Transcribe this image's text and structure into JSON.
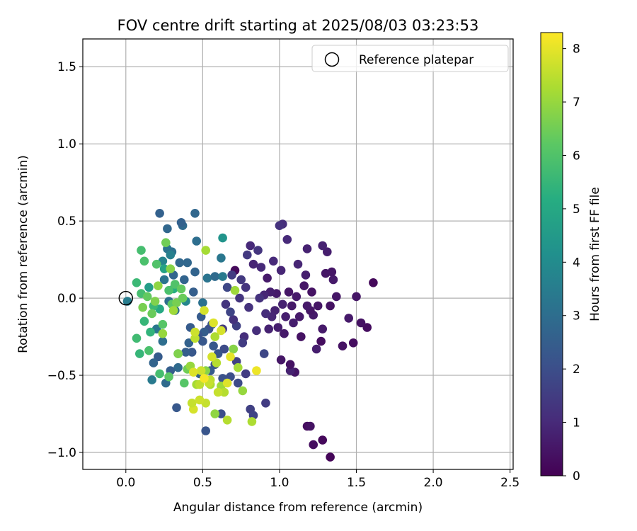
{
  "chart_data": {
    "type": "scatter",
    "title": "FOV centre drift starting at 2025/08/03 03:23:53",
    "xlabel": "Angular distance from reference (arcmin)",
    "ylabel": "Rotation from reference (arcmin)",
    "xlim": [
      -0.28,
      2.52
    ],
    "ylim": [
      -1.11,
      1.68
    ],
    "xticks": [
      0.0,
      0.5,
      1.0,
      1.5,
      2.0,
      2.5
    ],
    "xtick_labels": [
      "0.0",
      "0.5",
      "1.0",
      "1.5",
      "2.0",
      "2.5"
    ],
    "yticks": [
      -1.0,
      -0.5,
      0.0,
      0.5,
      1.0,
      1.5
    ],
    "ytick_labels": [
      "−1.0",
      "−0.5",
      "0.0",
      "0.5",
      "1.0",
      "1.5"
    ],
    "grid": true,
    "legend": {
      "placement": "top-right",
      "entries": [
        "Reference platepar"
      ]
    },
    "reference_point": {
      "x": 0.0,
      "y": 0.0,
      "label": "Reference platepar"
    },
    "colorbar": {
      "label": "Hours from first FF file",
      "colormap": "viridis",
      "range": [
        0,
        8.3
      ],
      "ticks": [
        0,
        1,
        2,
        3,
        4,
        5,
        6,
        7,
        8
      ],
      "tick_labels": [
        "0",
        "1",
        "2",
        "3",
        "4",
        "5",
        "6",
        "7",
        "8"
      ]
    },
    "points": [
      {
        "x": 1.33,
        "y": -1.03,
        "c": 0.1
      },
      {
        "x": 1.28,
        "y": -0.92,
        "c": 0.2
      },
      {
        "x": 1.22,
        "y": -0.95,
        "c": 0.3
      },
      {
        "x": 1.18,
        "y": -0.83,
        "c": 0.3
      },
      {
        "x": 1.2,
        "y": -0.83,
        "c": 0.4
      },
      {
        "x": 1.61,
        "y": 0.1,
        "c": 0.2
      },
      {
        "x": 1.57,
        "y": -0.19,
        "c": 0.3
      },
      {
        "x": 1.53,
        "y": -0.16,
        "c": 0.4
      },
      {
        "x": 1.5,
        "y": 0.01,
        "c": 0.5
      },
      {
        "x": 1.48,
        "y": -0.29,
        "c": 0.3
      },
      {
        "x": 1.45,
        "y": -0.13,
        "c": 0.6
      },
      {
        "x": 1.41,
        "y": -0.31,
        "c": 0.4
      },
      {
        "x": 1.37,
        "y": 0.01,
        "c": 0.5
      },
      {
        "x": 1.35,
        "y": 0.12,
        "c": 0.6
      },
      {
        "x": 1.34,
        "y": 0.17,
        "c": 0.5
      },
      {
        "x": 1.33,
        "y": -0.05,
        "c": 0.4
      },
      {
        "x": 1.31,
        "y": 0.3,
        "c": 0.7
      },
      {
        "x": 1.3,
        "y": 0.16,
        "c": 0.5
      },
      {
        "x": 1.28,
        "y": 0.34,
        "c": 0.8
      },
      {
        "x": 1.28,
        "y": -0.2,
        "c": 0.6
      },
      {
        "x": 1.27,
        "y": -0.28,
        "c": 0.3
      },
      {
        "x": 1.25,
        "y": -0.05,
        "c": 0.5
      },
      {
        "x": 1.24,
        "y": -0.33,
        "c": 0.7
      },
      {
        "x": 1.22,
        "y": -0.11,
        "c": 0.6
      },
      {
        "x": 1.21,
        "y": 0.04,
        "c": 0.4
      },
      {
        "x": 1.2,
        "y": -0.08,
        "c": 0.5
      },
      {
        "x": 1.18,
        "y": -0.05,
        "c": 0.6
      },
      {
        "x": 1.18,
        "y": 0.32,
        "c": 0.8
      },
      {
        "x": 1.17,
        "y": 0.15,
        "c": 0.7
      },
      {
        "x": 1.16,
        "y": 0.08,
        "c": 0.5
      },
      {
        "x": 1.14,
        "y": -0.25,
        "c": 0.4
      },
      {
        "x": 1.13,
        "y": -0.12,
        "c": 0.6
      },
      {
        "x": 1.12,
        "y": 0.22,
        "c": 0.9
      },
      {
        "x": 1.11,
        "y": 0.01,
        "c": 0.6
      },
      {
        "x": 1.1,
        "y": -0.48,
        "c": 0.5
      },
      {
        "x": 1.09,
        "y": -0.16,
        "c": 0.7
      },
      {
        "x": 1.08,
        "y": -0.05,
        "c": 0.6
      },
      {
        "x": 1.07,
        "y": -0.47,
        "c": 0.8
      },
      {
        "x": 1.07,
        "y": -0.43,
        "c": 0.4
      },
      {
        "x": 1.06,
        "y": 0.04,
        "c": 0.5
      },
      {
        "x": 1.05,
        "y": 0.38,
        "c": 1.0
      },
      {
        "x": 1.04,
        "y": -0.12,
        "c": 0.7
      },
      {
        "x": 1.03,
        "y": -0.23,
        "c": 0.6
      },
      {
        "x": 1.02,
        "y": 0.48,
        "c": 1.1
      },
      {
        "x": 1.02,
        "y": -0.04,
        "c": 0.8
      },
      {
        "x": 1.01,
        "y": 0.18,
        "c": 0.9
      },
      {
        "x": 1.01,
        "y": -0.4,
        "c": 0.5
      },
      {
        "x": 1.0,
        "y": 0.47,
        "c": 1.2
      },
      {
        "x": 0.99,
        "y": -0.19,
        "c": 0.7
      },
      {
        "x": 0.98,
        "y": 0.03,
        "c": 0.6
      },
      {
        "x": 0.97,
        "y": -0.08,
        "c": 0.8
      },
      {
        "x": 0.96,
        "y": 0.24,
        "c": 1.0
      },
      {
        "x": 0.95,
        "y": -0.12,
        "c": 0.9
      },
      {
        "x": 0.94,
        "y": 0.04,
        "c": 0.7
      },
      {
        "x": 0.93,
        "y": -0.2,
        "c": 0.8
      },
      {
        "x": 0.92,
        "y": 0.13,
        "c": 0.6
      },
      {
        "x": 0.91,
        "y": -0.1,
        "c": 1.1
      },
      {
        "x": 0.9,
        "y": 0.02,
        "c": 0.9
      },
      {
        "x": 0.88,
        "y": 0.2,
        "c": 1.0
      },
      {
        "x": 0.87,
        "y": 0.0,
        "c": 1.2
      },
      {
        "x": 0.86,
        "y": 0.31,
        "c": 1.3
      },
      {
        "x": 0.85,
        "y": -0.21,
        "c": 1.1
      },
      {
        "x": 0.83,
        "y": 0.22,
        "c": 0.9
      },
      {
        "x": 0.81,
        "y": 0.34,
        "c": 1.0
      },
      {
        "x": 0.8,
        "y": -0.06,
        "c": 1.2
      },
      {
        "x": 0.79,
        "y": 0.28,
        "c": 1.4
      },
      {
        "x": 0.78,
        "y": 0.07,
        "c": 1.3
      },
      {
        "x": 0.77,
        "y": -0.25,
        "c": 1.1
      },
      {
        "x": 0.76,
        "y": -0.29,
        "c": 1.5
      },
      {
        "x": 0.75,
        "y": 0.12,
        "c": 1.4
      },
      {
        "x": 0.74,
        "y": 0.0,
        "c": 1.3
      },
      {
        "x": 0.72,
        "y": -0.18,
        "c": 1.6
      },
      {
        "x": 0.71,
        "y": 0.18,
        "c": 0.2
      },
      {
        "x": 0.7,
        "y": -0.14,
        "c": 1.2
      },
      {
        "x": 0.69,
        "y": 0.15,
        "c": 1.5
      },
      {
        "x": 0.68,
        "y": -0.09,
        "c": 1.7
      },
      {
        "x": 0.66,
        "y": 0.07,
        "c": 1.8
      },
      {
        "x": 0.65,
        "y": -0.04,
        "c": 1.3
      },
      {
        "x": 0.64,
        "y": -0.33,
        "c": 1.9
      },
      {
        "x": 0.63,
        "y": -0.2,
        "c": 1.4
      },
      {
        "x": 0.72,
        "y": -0.41,
        "c": 1.6
      },
      {
        "x": 0.78,
        "y": -0.49,
        "c": 1.5
      },
      {
        "x": 0.81,
        "y": -0.72,
        "c": 1.6
      },
      {
        "x": 0.83,
        "y": -0.76,
        "c": 1.7
      },
      {
        "x": 0.91,
        "y": -0.68,
        "c": 1.5
      },
      {
        "x": 0.9,
        "y": -0.36,
        "c": 1.8
      },
      {
        "x": 0.73,
        "y": -0.55,
        "c": 1.9
      },
      {
        "x": 0.68,
        "y": -0.51,
        "c": 2.0
      },
      {
        "x": 0.63,
        "y": -0.52,
        "c": 2.1
      },
      {
        "x": 0.62,
        "y": -0.75,
        "c": 2.0
      },
      {
        "x": 0.6,
        "y": -0.36,
        "c": 2.2
      },
      {
        "x": 0.58,
        "y": -0.43,
        "c": 2.1
      },
      {
        "x": 0.57,
        "y": -0.31,
        "c": 2.3
      },
      {
        "x": 0.56,
        "y": -0.17,
        "c": 2.2
      },
      {
        "x": 0.55,
        "y": -0.47,
        "c": 2.4
      },
      {
        "x": 0.54,
        "y": -0.2,
        "c": 2.1
      },
      {
        "x": 0.52,
        "y": -0.86,
        "c": 2.2
      },
      {
        "x": 0.51,
        "y": -0.22,
        "c": 2.5
      },
      {
        "x": 0.5,
        "y": -0.28,
        "c": 2.3
      },
      {
        "x": 0.49,
        "y": -0.12,
        "c": 2.4
      },
      {
        "x": 0.48,
        "y": -0.49,
        "c": 2.6
      },
      {
        "x": 0.47,
        "y": -0.24,
        "c": 2.2
      },
      {
        "x": 0.45,
        "y": 0.17,
        "c": 2.7
      },
      {
        "x": 0.44,
        "y": 0.04,
        "c": 2.5
      },
      {
        "x": 0.43,
        "y": -0.35,
        "c": 2.3
      },
      {
        "x": 0.42,
        "y": -0.19,
        "c": 2.4
      },
      {
        "x": 0.41,
        "y": -0.29,
        "c": 2.6
      },
      {
        "x": 0.4,
        "y": 0.23,
        "c": 2.8
      },
      {
        "x": 0.39,
        "y": -0.35,
        "c": 2.5
      },
      {
        "x": 0.38,
        "y": 0.12,
        "c": 2.7
      },
      {
        "x": 0.37,
        "y": 0.47,
        "c": 2.9
      },
      {
        "x": 0.36,
        "y": 0.49,
        "c": 2.6
      },
      {
        "x": 0.35,
        "y": 0.23,
        "c": 2.8
      },
      {
        "x": 0.34,
        "y": -0.45,
        "c": 2.9
      },
      {
        "x": 0.33,
        "y": -0.71,
        "c": 2.3
      },
      {
        "x": 0.32,
        "y": -0.08,
        "c": 3.0
      },
      {
        "x": 0.31,
        "y": 0.15,
        "c": 2.7
      },
      {
        "x": 0.3,
        "y": 0.3,
        "c": 3.1
      },
      {
        "x": 0.29,
        "y": -0.47,
        "c": 2.5
      },
      {
        "x": 0.28,
        "y": -0.02,
        "c": 3.0
      },
      {
        "x": 0.27,
        "y": 0.45,
        "c": 2.8
      },
      {
        "x": 0.26,
        "y": -0.55,
        "c": 2.9
      },
      {
        "x": 0.25,
        "y": 0.12,
        "c": 3.2
      },
      {
        "x": 0.24,
        "y": -0.28,
        "c": 3.0
      },
      {
        "x": 0.22,
        "y": 0.55,
        "c": 2.6
      },
      {
        "x": 0.21,
        "y": -0.38,
        "c": 2.4
      },
      {
        "x": 0.2,
        "y": -0.2,
        "c": 3.3
      },
      {
        "x": 0.18,
        "y": -0.42,
        "c": 2.7
      },
      {
        "x": 0.17,
        "y": -0.53,
        "c": 3.4
      },
      {
        "x": 0.45,
        "y": 0.55,
        "c": 2.8
      },
      {
        "x": 0.46,
        "y": 0.37,
        "c": 3.0
      },
      {
        "x": 0.5,
        "y": -0.03,
        "c": 3.1
      },
      {
        "x": 0.53,
        "y": 0.13,
        "c": 3.2
      },
      {
        "x": 0.58,
        "y": 0.14,
        "c": 2.9
      },
      {
        "x": 0.62,
        "y": 0.26,
        "c": 3.3
      },
      {
        "x": 0.63,
        "y": 0.14,
        "c": 3.4
      },
      {
        "x": 0.01,
        "y": -0.02,
        "c": 3.5
      },
      {
        "x": 0.27,
        "y": 0.32,
        "c": 3.2
      },
      {
        "x": 0.29,
        "y": 0.28,
        "c": 3.6
      },
      {
        "x": 0.24,
        "y": 0.24,
        "c": 3.7
      },
      {
        "x": 0.39,
        "y": -0.02,
        "c": 3.8
      },
      {
        "x": 0.63,
        "y": 0.39,
        "c": 4.3
      },
      {
        "x": 0.15,
        "y": 0.07,
        "c": 4.6
      },
      {
        "x": 0.25,
        "y": 0.19,
        "c": 4.8
      },
      {
        "x": 0.22,
        "y": -0.07,
        "c": 5.0
      },
      {
        "x": 0.31,
        "y": 0.06,
        "c": 5.2
      },
      {
        "x": 0.16,
        "y": -0.22,
        "c": 5.4
      },
      {
        "x": 0.12,
        "y": -0.15,
        "c": 5.5
      },
      {
        "x": 0.07,
        "y": 0.1,
        "c": 5.6
      },
      {
        "x": 0.07,
        "y": -0.26,
        "c": 5.7
      },
      {
        "x": 0.1,
        "y": 0.31,
        "c": 5.8
      },
      {
        "x": 0.12,
        "y": 0.24,
        "c": 5.9
      },
      {
        "x": 0.18,
        "y": -0.05,
        "c": 5.6
      },
      {
        "x": 0.2,
        "y": 0.22,
        "c": 6.0
      },
      {
        "x": 0.22,
        "y": -0.49,
        "c": 5.8
      },
      {
        "x": 0.24,
        "y": -0.17,
        "c": 6.1
      },
      {
        "x": 0.28,
        "y": 0.05,
        "c": 5.9
      },
      {
        "x": 0.3,
        "y": -0.04,
        "c": 6.2
      },
      {
        "x": 0.32,
        "y": 0.09,
        "c": 6.0
      },
      {
        "x": 0.34,
        "y": -0.36,
        "c": 5.7
      },
      {
        "x": 0.36,
        "y": 0.06,
        "c": 6.3
      },
      {
        "x": 0.38,
        "y": -0.55,
        "c": 6.1
      },
      {
        "x": 0.15,
        "y": -0.34,
        "c": 5.9
      },
      {
        "x": 0.17,
        "y": -0.1,
        "c": 6.4
      },
      {
        "x": 0.09,
        "y": -0.36,
        "c": 5.5
      },
      {
        "x": 0.1,
        "y": 0.03,
        "c": 5.8
      },
      {
        "x": 0.28,
        "y": -0.51,
        "c": 6.2
      },
      {
        "x": 0.4,
        "y": -0.46,
        "c": 6.5
      },
      {
        "x": 0.14,
        "y": 0.01,
        "c": 6.3
      },
      {
        "x": 0.11,
        "y": -0.06,
        "c": 6.6
      },
      {
        "x": 0.19,
        "y": -0.02,
        "c": 6.7
      },
      {
        "x": 0.26,
        "y": 0.36,
        "c": 6.5
      },
      {
        "x": 0.29,
        "y": 0.19,
        "c": 6.8
      },
      {
        "x": 0.33,
        "y": -0.03,
        "c": 6.6
      },
      {
        "x": 0.37,
        "y": 0.0,
        "c": 6.4
      },
      {
        "x": 0.21,
        "y": 0.08,
        "c": 6.9
      },
      {
        "x": 0.24,
        "y": -0.23,
        "c": 7.0
      },
      {
        "x": 0.31,
        "y": -0.08,
        "c": 7.1
      },
      {
        "x": 0.34,
        "y": -0.36,
        "c": 6.7
      },
      {
        "x": 0.42,
        "y": -0.44,
        "c": 7.0
      },
      {
        "x": 0.46,
        "y": -0.56,
        "c": 7.2
      },
      {
        "x": 0.52,
        "y": -0.47,
        "c": 6.8
      },
      {
        "x": 0.55,
        "y": -0.56,
        "c": 7.3
      },
      {
        "x": 0.58,
        "y": -0.75,
        "c": 6.9
      },
      {
        "x": 0.62,
        "y": -0.57,
        "c": 7.1
      },
      {
        "x": 0.66,
        "y": -0.79,
        "c": 7.4
      },
      {
        "x": 0.7,
        "y": -0.33,
        "c": 6.8
      },
      {
        "x": 0.73,
        "y": -0.45,
        "c": 7.2
      },
      {
        "x": 0.76,
        "y": -0.6,
        "c": 7.0
      },
      {
        "x": 0.82,
        "y": -0.8,
        "c": 7.3
      },
      {
        "x": 0.52,
        "y": 0.31,
        "c": 7.2
      },
      {
        "x": 0.71,
        "y": 0.05,
        "c": 7.1
      },
      {
        "x": 0.64,
        "y": -0.61,
        "c": 7.4
      },
      {
        "x": 0.58,
        "y": -0.25,
        "c": 7.3
      },
      {
        "x": 0.55,
        "y": -0.53,
        "c": 7.5
      },
      {
        "x": 0.52,
        "y": -0.68,
        "c": 7.6
      },
      {
        "x": 0.49,
        "y": -0.47,
        "c": 7.7
      },
      {
        "x": 0.45,
        "y": -0.26,
        "c": 7.5
      },
      {
        "x": 0.44,
        "y": -0.72,
        "c": 7.8
      },
      {
        "x": 0.43,
        "y": -0.68,
        "c": 7.6
      },
      {
        "x": 0.44,
        "y": -0.48,
        "c": 7.9
      },
      {
        "x": 0.45,
        "y": -0.22,
        "c": 7.7
      },
      {
        "x": 0.48,
        "y": -0.56,
        "c": 7.5
      },
      {
        "x": 0.51,
        "y": -0.08,
        "c": 7.8
      },
      {
        "x": 0.54,
        "y": -0.55,
        "c": 7.6
      },
      {
        "x": 0.57,
        "y": -0.16,
        "c": 7.9
      },
      {
        "x": 0.59,
        "y": -0.42,
        "c": 7.4
      },
      {
        "x": 0.6,
        "y": -0.61,
        "c": 7.6
      },
      {
        "x": 0.62,
        "y": -0.21,
        "c": 7.8
      },
      {
        "x": 0.48,
        "y": -0.66,
        "c": 7.7
      },
      {
        "x": 0.66,
        "y": -0.55,
        "c": 7.9
      },
      {
        "x": 0.68,
        "y": -0.38,
        "c": 8.0
      },
      {
        "x": 0.56,
        "y": -0.38,
        "c": 7.8
      },
      {
        "x": 0.85,
        "y": -0.47,
        "c": 8.1
      },
      {
        "x": 0.51,
        "y": -0.52,
        "c": 8.2
      }
    ]
  }
}
